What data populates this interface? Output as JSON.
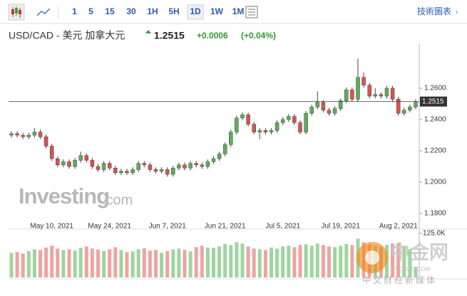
{
  "toolbar": {
    "intervals": [
      "1",
      "5",
      "15",
      "30",
      "1H",
      "5H",
      "1D",
      "1W",
      "1M"
    ],
    "active": "1D",
    "chart_link": "技術圖表"
  },
  "header": {
    "symbol": "USD/CAD - 美元 加拿大元",
    "price": "1.2515",
    "change": "+0.0006",
    "change_pct": "(+0.04%)"
  },
  "watermarks": {
    "brand": "Investing",
    "brand_suffix": ".com",
    "site": "中金网",
    "site_url": "CNGOLD.COM",
    "site_tagline": "中文财经新媒体"
  },
  "chart_data": {
    "type": "candlestick",
    "up_color": "#5cae5c",
    "down_color": "#d9534f",
    "up_volume_color": "#9ed59e",
    "down_volume_color": "#eea3a3",
    "open": [
      1.23,
      1.231,
      1.23,
      1.229,
      1.23,
      1.232,
      1.229,
      1.223,
      1.215,
      1.211,
      1.213,
      1.21,
      1.214,
      1.217,
      1.214,
      1.21,
      1.208,
      1.212,
      1.209,
      1.206,
      1.207,
      1.206,
      1.208,
      1.212,
      1.211,
      1.208,
      1.207,
      1.208,
      1.205,
      1.209,
      1.211,
      1.209,
      1.212,
      1.211,
      1.21,
      1.213,
      1.215,
      1.218,
      1.224,
      1.232,
      1.241,
      1.243,
      1.237,
      1.232,
      1.233,
      1.232,
      1.233,
      1.238,
      1.24,
      1.242,
      1.238,
      1.232,
      1.244,
      1.248,
      1.251,
      1.246,
      1.244,
      1.247,
      1.252,
      1.259,
      1.253,
      1.267,
      1.262,
      1.255,
      1.256,
      1.255,
      1.26,
      1.253,
      1.244,
      1.246,
      1.248
    ],
    "high": [
      1.2325,
      1.2325,
      1.2315,
      1.2315,
      1.2345,
      1.2335,
      1.2305,
      1.2245,
      1.2165,
      1.2145,
      1.2145,
      1.2155,
      1.2195,
      1.2185,
      1.2155,
      1.2115,
      1.2135,
      1.2135,
      1.2105,
      1.2085,
      1.2085,
      1.2095,
      1.2135,
      1.2135,
      1.2125,
      1.2095,
      1.2095,
      1.2095,
      1.2105,
      1.2125,
      1.2125,
      1.2135,
      1.2135,
      1.2125,
      1.2145,
      1.2165,
      1.2195,
      1.2255,
      1.2335,
      1.2425,
      1.2445,
      1.2445,
      1.2385,
      1.2345,
      1.2345,
      1.2345,
      1.2395,
      1.2415,
      1.2435,
      1.2435,
      1.2395,
      1.2455,
      1.2495,
      1.258,
      1.2525,
      1.2475,
      1.2485,
      1.2535,
      1.2605,
      1.2605,
      1.279,
      1.27,
      1.2635,
      1.26,
      1.2575,
      1.2615,
      1.2615,
      1.2545,
      1.2475,
      1.2495,
      1.253
    ],
    "low": [
      1.2285,
      1.2285,
      1.2275,
      1.2275,
      1.2285,
      1.2275,
      1.2215,
      1.2135,
      1.2095,
      1.2095,
      1.2085,
      1.2085,
      1.2125,
      1.2125,
      1.2085,
      1.2065,
      1.2065,
      1.2075,
      1.2045,
      1.2045,
      1.2045,
      1.2045,
      1.2065,
      1.2095,
      1.2065,
      1.2055,
      1.2055,
      1.2035,
      1.2035,
      1.2075,
      1.2075,
      1.2075,
      1.2095,
      1.2085,
      1.2085,
      1.2115,
      1.2135,
      1.2165,
      1.2225,
      1.2305,
      1.2395,
      1.2355,
      1.2305,
      1.2275,
      1.2305,
      1.2305,
      1.2315,
      1.2365,
      1.2385,
      1.2365,
      1.2305,
      1.2305,
      1.2425,
      1.2465,
      1.2445,
      1.2425,
      1.2425,
      1.2455,
      1.2505,
      1.2515,
      1.2515,
      1.2605,
      1.2535,
      1.2535,
      1.2535,
      1.2535,
      1.2515,
      1.2425,
      1.2425,
      1.2445,
      1.2465
    ],
    "close": [
      1.231,
      1.23,
      1.229,
      1.23,
      1.232,
      1.229,
      1.223,
      1.215,
      1.211,
      1.213,
      1.21,
      1.214,
      1.217,
      1.214,
      1.21,
      1.208,
      1.212,
      1.209,
      1.206,
      1.207,
      1.206,
      1.208,
      1.212,
      1.211,
      1.208,
      1.207,
      1.208,
      1.205,
      1.209,
      1.211,
      1.209,
      1.212,
      1.211,
      1.21,
      1.213,
      1.215,
      1.218,
      1.224,
      1.232,
      1.241,
      1.243,
      1.237,
      1.232,
      1.233,
      1.232,
      1.233,
      1.238,
      1.24,
      1.242,
      1.238,
      1.232,
      1.244,
      1.248,
      1.251,
      1.246,
      1.244,
      1.247,
      1.252,
      1.259,
      1.253,
      1.267,
      1.262,
      1.255,
      1.256,
      1.255,
      1.26,
      1.253,
      1.244,
      1.246,
      1.248,
      1.2515
    ],
    "ylim": [
      1.1718,
      1.2882
    ],
    "yticks": [
      {
        "value": 1.18,
        "label": "1.1800"
      },
      {
        "value": 1.2,
        "label": "1.2000"
      },
      {
        "value": 1.22,
        "label": "1.2200"
      },
      {
        "value": 1.24,
        "label": "1.2400"
      },
      {
        "value": 1.26,
        "label": "1.2600"
      }
    ],
    "x_labels": [
      "May 10, 2021",
      "May 24, 2021",
      "Jun 7, 2021",
      "Jun 21, 2021",
      "Jul 5, 2021",
      "Jul 19, 2021",
      "Aug 2, 2021"
    ],
    "last_price": {
      "value": 1.2515,
      "label": "1.2515"
    },
    "volume": {
      "values": [
        70000,
        72000,
        68000,
        75000,
        80000,
        78000,
        85000,
        90000,
        82000,
        78000,
        80000,
        76000,
        84000,
        88000,
        82000,
        79000,
        75000,
        80000,
        86000,
        78000,
        72000,
        74000,
        80000,
        83000,
        76000,
        78000,
        70000,
        75000,
        80000,
        82000,
        78000,
        74000,
        86000,
        90000,
        85000,
        84000,
        88000,
        95000,
        92000,
        100000,
        96000,
        88000,
        82000,
        80000,
        78000,
        85000,
        82000,
        88000,
        90000,
        86000,
        92000,
        94000,
        90000,
        96000,
        92000,
        88000,
        86000,
        90000,
        95000,
        92000,
        110000,
        100000,
        94000,
        90000,
        88000,
        92000,
        96000,
        98000,
        90000,
        80000,
        30000
      ],
      "ylim": [
        0,
        125000
      ],
      "yticks": [
        {
          "value": 125000,
          "label": "125.0K"
        }
      ]
    }
  }
}
